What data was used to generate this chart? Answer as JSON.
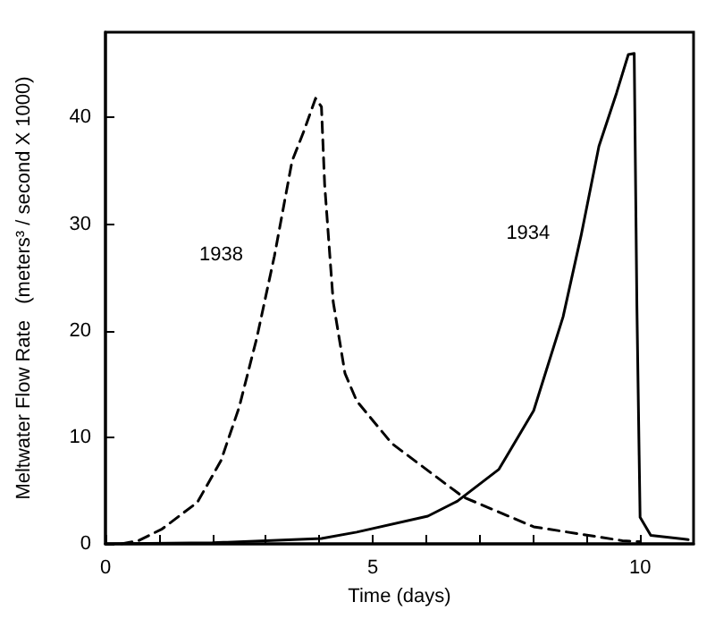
{
  "chart_data": {
    "type": "line",
    "xlabel": "Time (days)",
    "ylabel": "Meltwater Flow Rate   (meters³ / second X 1000)",
    "xlim": [
      0,
      11
    ],
    "ylim": [
      0,
      48
    ],
    "xticks": [
      0,
      {
        "value": 1,
        "label": null
      },
      {
        "value": 2,
        "label": null
      },
      {
        "value": 3,
        "label": null
      },
      {
        "value": 4,
        "label": null
      },
      5,
      {
        "value": 6,
        "label": null
      },
      {
        "value": 7,
        "label": null
      },
      {
        "value": 8,
        "label": null
      },
      {
        "value": 9,
        "label": null
      },
      10
    ],
    "yticks": [
      0,
      10,
      20,
      30,
      40
    ],
    "grid": false,
    "legend": false,
    "marker": "none",
    "series": [
      {
        "name": "1938",
        "color": "#000000",
        "line_style": "dashed",
        "x": [
          0.3,
          0.62,
          1.06,
          1.72,
          2.16,
          2.5,
          2.83,
          3.16,
          3.49,
          3.71,
          3.93,
          4.04,
          4.1,
          4.26,
          4.48,
          4.7,
          5.36,
          6.69,
          8.01,
          9.67,
          10.0
        ],
        "values": [
          0,
          0.3,
          1.4,
          3.9,
          7.8,
          12.8,
          19.3,
          27,
          35.9,
          38.7,
          41.8,
          41,
          33.7,
          22.7,
          16,
          13.4,
          9.4,
          4.4,
          1.6,
          0.3,
          0.2
        ]
      },
      {
        "name": "1934",
        "color": "#000000",
        "line_style": "solid",
        "x": [
          0,
          2,
          4.04,
          4.7,
          6.03,
          6.58,
          7.36,
          8.01,
          8.56,
          8.9,
          9.23,
          9.56,
          9.78,
          9.89,
          9.94,
          10.0,
          10.2,
          10.9
        ],
        "values": [
          0,
          0.1,
          0.5,
          1.1,
          2.6,
          4,
          7,
          12.5,
          21.3,
          29,
          37.3,
          42.3,
          45.9,
          46,
          22.4,
          2.5,
          0.8,
          0.4
        ]
      }
    ]
  }
}
